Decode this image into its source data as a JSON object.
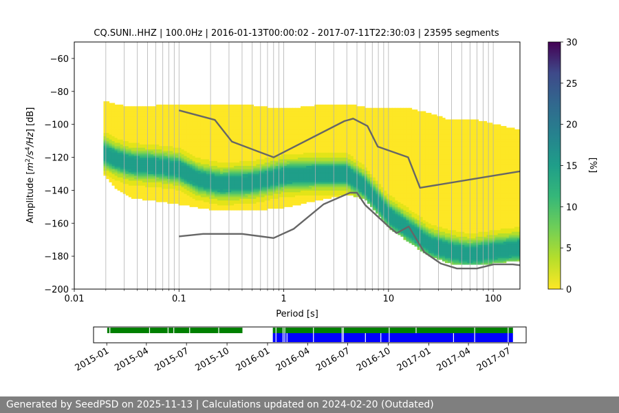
{
  "chart_data": [
    {
      "type": "heatmap",
      "title": "CQ.SUNI..HHZ | 100.0Hz | 2016-01-13T00:00:02 - 2017-07-11T22:30:03 | 23595 segments",
      "xlabel": "Period [s]",
      "ylabel": "Amplitude [m²/s⁴/Hz] [dB]",
      "x_scale": "log",
      "xlim": [
        0.01,
        180
      ],
      "ylim": [
        -200,
        -50
      ],
      "x_ticks": [
        0.01,
        0.1,
        1,
        10,
        100
      ],
      "x_tick_labels": [
        "0.01",
        "0.1",
        "1",
        "10",
        "100"
      ],
      "y_ticks": [
        -200,
        -180,
        -160,
        -140,
        -120,
        -100,
        -80,
        -60
      ],
      "y_tick_labels": [
        "−200",
        "−180",
        "−160",
        "−140",
        "−120",
        "−100",
        "−80",
        "−60"
      ],
      "grid": "vertical",
      "colorbar": {
        "label": "[%]",
        "range": [
          0,
          30
        ],
        "ticks": [
          0,
          5,
          10,
          15,
          20,
          25,
          30
        ],
        "tick_labels": [
          "0",
          "5",
          "10",
          "15",
          "20",
          "25",
          "30"
        ],
        "colormap": "viridis"
      },
      "psd_envelope": [
        {
          "period": 0.019,
          "top": -86,
          "bottom": -130,
          "mode": -117
        },
        {
          "period": 0.025,
          "top": -88,
          "bottom": -138,
          "mode": -121
        },
        {
          "period": 0.035,
          "top": -90,
          "bottom": -144,
          "mode": -124
        },
        {
          "period": 0.06,
          "top": -89,
          "bottom": -146,
          "mode": -125
        },
        {
          "period": 0.1,
          "top": -88,
          "bottom": -148,
          "mode": -127
        },
        {
          "period": 0.15,
          "top": -88,
          "bottom": -150,
          "mode": -133
        },
        {
          "period": 0.25,
          "top": -88,
          "bottom": -152,
          "mode": -136
        },
        {
          "period": 0.5,
          "top": -89,
          "bottom": -152,
          "mode": -135
        },
        {
          "period": 1,
          "top": -91,
          "bottom": -150,
          "mode": -131
        },
        {
          "period": 2,
          "top": -89,
          "bottom": -146,
          "mode": -130
        },
        {
          "period": 4,
          "top": -88,
          "bottom": -142,
          "mode": -130
        },
        {
          "period": 6,
          "top": -90,
          "bottom": -145,
          "mode": -138
        },
        {
          "period": 10,
          "top": -91,
          "bottom": -162,
          "mode": -155
        },
        {
          "period": 15,
          "top": -90,
          "bottom": -170,
          "mode": -163
        },
        {
          "period": 25,
          "top": -94,
          "bottom": -180,
          "mode": -173
        },
        {
          "period": 40,
          "top": -98,
          "bottom": -184,
          "mode": -177
        },
        {
          "period": 60,
          "top": -97,
          "bottom": -185,
          "mode": -179
        },
        {
          "period": 100,
          "top": -100,
          "bottom": -184,
          "mode": -177
        },
        {
          "period": 180,
          "top": -104,
          "bottom": -182,
          "mode": -175
        }
      ],
      "series": [
        {
          "x": [
            0.1,
            0.22,
            0.32,
            0.8,
            3.8,
            4.6,
            6.3,
            7.9,
            15.4,
            20,
            180
          ],
          "y": [
            -91.5,
            -97.3,
            -110.5,
            -120,
            -98,
            -96.5,
            -101,
            -113.5,
            -120,
            -138.5,
            -128.5
          ]
        },
        {
          "x": [
            0.1,
            0.17,
            0.4,
            0.8,
            1.24,
            2.4,
            4.3,
            5,
            6,
            10,
            12,
            15.6,
            21.9,
            31.6,
            45,
            70,
            101,
            154,
            180
          ],
          "y": [
            -168,
            -166.5,
            -166.5,
            -169,
            -163.5,
            -148.5,
            -141.5,
            -141.5,
            -149,
            -162,
            -166,
            -162,
            -177.5,
            -184.5,
            -187.5,
            -187.5,
            -185,
            -185,
            -185.5
          ]
        }
      ]
    },
    {
      "type": "timeline",
      "x_ticks": [
        "2015-01",
        "2015-04",
        "2015-07",
        "2015-10",
        "2016-01",
        "2016-04",
        "2016-07",
        "2016-10",
        "2017-01",
        "2017-04",
        "2017-07"
      ],
      "xlim": [
        "2014-12-02",
        "2017-08-10"
      ],
      "series": [
        {
          "color": "#008000",
          "intervals": [
            [
              "2015-01-02",
              "2015-01-07"
            ],
            [
              "2015-01-09",
              "2015-11-05"
            ],
            [
              "2016-01-13",
              "2017-07-11"
            ]
          ],
          "gaps": [
            "2015-04-08",
            "2015-05-20",
            "2015-06-02",
            "2015-07-08",
            "2015-09-12",
            "2016-01-20",
            "2016-02-05",
            "2016-02-09",
            "2016-04-14",
            "2016-06-18",
            "2016-06-21",
            "2016-10-03",
            "2016-12-03",
            "2017-04-15",
            "2017-06-30"
          ]
        },
        {
          "color": "#0000ff",
          "intervals": [
            [
              "2016-01-13",
              "2017-07-11"
            ]
          ],
          "gaps": [
            "2016-01-20",
            "2016-02-05",
            "2016-02-09",
            "2016-02-14",
            "2016-04-14",
            "2016-06-18",
            "2016-06-21",
            "2016-08-10",
            "2016-09-14",
            "2016-10-03",
            "2017-02-26",
            "2017-04-15",
            "2017-06-30"
          ]
        }
      ]
    }
  ],
  "footer": {
    "text": "Generated by SeedPSD on 2025-11-13 | Calculations updated on 2024-02-20 (Outdated)"
  }
}
